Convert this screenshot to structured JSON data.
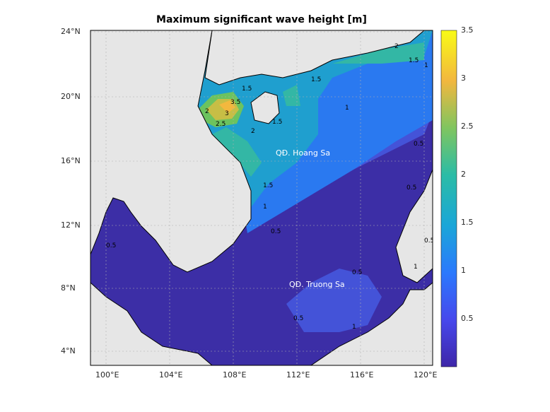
{
  "title": "Maximum significant wave height [m]",
  "map": {
    "lon_range": [
      99.2,
      120.6
    ],
    "lat_range": [
      3.1,
      24.0
    ],
    "x_ticks": [
      "100°E",
      "104°E",
      "108°E",
      "112°E",
      "116°E",
      "120°E"
    ],
    "y_ticks": [
      "24°N",
      "20°N",
      "16°N",
      "12°N",
      "8°N",
      "4°N"
    ],
    "place_labels": [
      "QĐ. Hoang Sa",
      "QĐ. Truong Sa"
    ],
    "contour_labels": [
      "3.5",
      "3",
      "2.5",
      "2",
      "2",
      "1.5",
      "1.5",
      "1.5",
      "1.5",
      "1",
      "1",
      "1",
      "1",
      "2",
      "1.5",
      "0.5",
      "0.5",
      "0.5",
      "0.5",
      "0.5",
      "0.5",
      "0.5",
      "1"
    ],
    "land_color": "#e6e6e6",
    "grid": true
  },
  "colorbar": {
    "range": [
      0,
      3.5
    ],
    "ticks": [
      "3.5",
      "3",
      "2.5",
      "2",
      "1.5",
      "1",
      "0.5"
    ],
    "colormap": "parula"
  }
}
